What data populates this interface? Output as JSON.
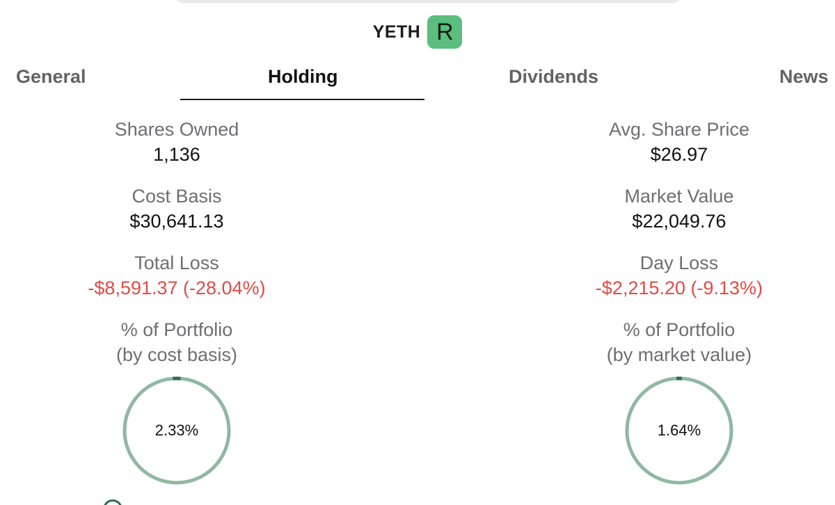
{
  "ticker": {
    "symbol": "YETH",
    "badge": "R"
  },
  "tabs": [
    {
      "label": "General",
      "active": false
    },
    {
      "label": "Holding",
      "active": true
    },
    {
      "label": "Dividends",
      "active": false
    },
    {
      "label": "News",
      "active": false
    }
  ],
  "holding": {
    "left": {
      "shares_owned": {
        "label": "Shares Owned",
        "value": "1,136"
      },
      "cost_basis": {
        "label": "Cost Basis",
        "value": "$30,641.13"
      },
      "total_loss": {
        "label": "Total Loss",
        "value": "-$8,591.37 (-28.04%)"
      },
      "portfolio": {
        "label_line1": "% of Portfolio",
        "label_line2": "(by cost basis)",
        "value": "2.33%",
        "fraction": 0.0233
      }
    },
    "right": {
      "avg_share_price": {
        "label": "Avg. Share Price",
        "value": "$26.97"
      },
      "market_value": {
        "label": "Market Value",
        "value": "$22,049.76"
      },
      "day_loss": {
        "label": "Day Loss",
        "value": "-$2,215.20 (-9.13%)"
      },
      "portfolio": {
        "label_line1": "% of Portfolio",
        "label_line2": "(by market value)",
        "value": "1.64%",
        "fraction": 0.0164
      }
    }
  },
  "colors": {
    "accent_green": "#5bbd7e",
    "ring_track": "#8fb8a3",
    "ring_fill": "#2f6b55",
    "loss_red": "#e14b45"
  }
}
